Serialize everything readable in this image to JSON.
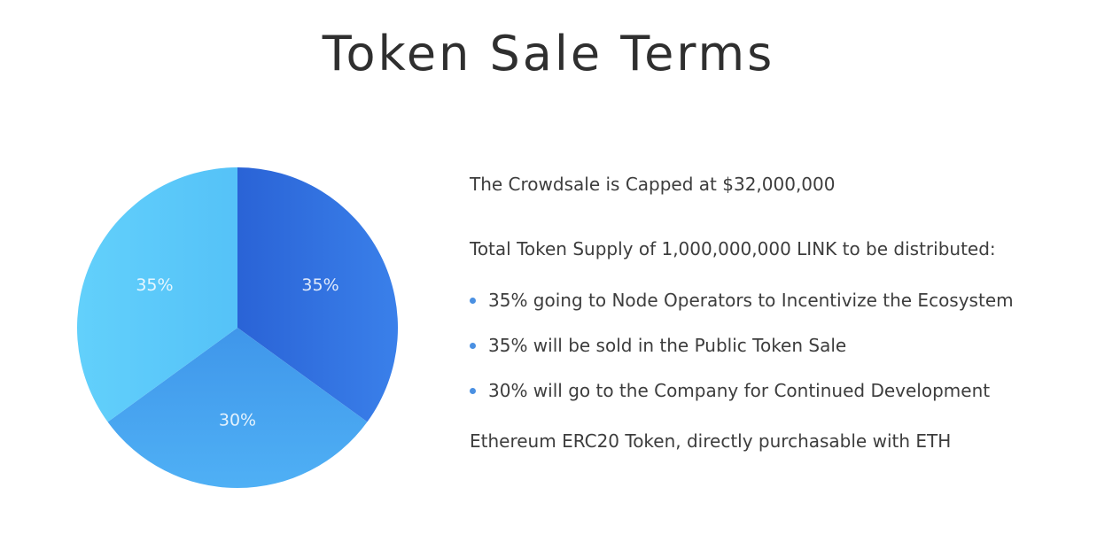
{
  "title": "Token Sale Terms",
  "info": {
    "cap_text": "The Crowdsale is Capped at $32,000,000",
    "supply_text": "Total Token Supply of 1,000,000,000 LINK to be distributed:",
    "bullets": [
      "35% going to Node Operators to Incentivize the Ecosystem",
      "35% will be sold in the Public Token Sale",
      "30% will go to the Company for Continued Development"
    ],
    "footer_text": "Ethereum ERC20 Token, directly purchasable with ETH"
  },
  "colors": {
    "slice_dark": "#3275e4",
    "slice_mid": "#4aa6f2",
    "slice_light": "#5ecbfa",
    "bullet": "#4a90e2"
  },
  "chart_data": {
    "type": "pie",
    "slices": [
      {
        "label": "35%",
        "value": 35,
        "color": "#3275e4"
      },
      {
        "label": "30%",
        "value": 30,
        "color": "#4aa6f2"
      },
      {
        "label": "35%",
        "value": 35,
        "color": "#5ecbfa"
      }
    ]
  }
}
